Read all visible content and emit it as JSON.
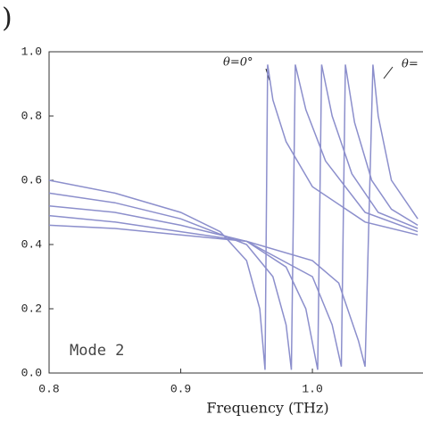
{
  "chart_data": {
    "type": "line",
    "title": ")",
    "x_label": "Frequency (THz)",
    "annotations": [
      "θ=0°",
      "θ="
    ],
    "mode_label": "Mode 2",
    "xlim": [
      0.8,
      1.084
    ],
    "xticks": [
      0.8,
      0.9,
      {
        "value": 1,
        "label": "1.0"
      }
    ],
    "ylim": [
      0,
      1
    ],
    "yticks": [
      {
        "value": 0,
        "label": "0.0"
      },
      0.2,
      0.4,
      0.6,
      0.8,
      {
        "value": 1,
        "label": "1.0"
      }
    ],
    "series": [
      {
        "color": "#8c8fcc",
        "x": [
          0.8,
          0.85,
          0.9,
          0.93,
          0.95,
          0.96,
          0.964,
          0.966,
          0.97,
          0.98,
          1.0,
          1.04,
          1.08
        ],
        "values": [
          0.6,
          0.56,
          0.5,
          0.44,
          0.35,
          0.2,
          0.01,
          0.96,
          0.85,
          0.72,
          0.58,
          0.47,
          0.43
        ]
      },
      {
        "color": "#8c8fcc",
        "x": [
          0.8,
          0.85,
          0.9,
          0.95,
          0.97,
          0.98,
          0.984,
          0.987,
          0.995,
          1.01,
          1.04,
          1.08
        ],
        "values": [
          0.56,
          0.53,
          0.48,
          0.4,
          0.3,
          0.15,
          0.01,
          0.96,
          0.82,
          0.66,
          0.5,
          0.44
        ]
      },
      {
        "color": "#8c8fcc",
        "x": [
          0.8,
          0.85,
          0.9,
          0.95,
          0.98,
          0.995,
          1.004,
          1.007,
          1.015,
          1.03,
          1.05,
          1.08
        ],
        "values": [
          0.52,
          0.5,
          0.46,
          0.41,
          0.33,
          0.2,
          0.01,
          0.96,
          0.8,
          0.62,
          0.5,
          0.45
        ]
      },
      {
        "color": "#8c8fcc",
        "x": [
          0.8,
          0.85,
          0.9,
          0.95,
          1.0,
          1.015,
          1.022,
          1.025,
          1.032,
          1.045,
          1.06,
          1.08
        ],
        "values": [
          0.49,
          0.47,
          0.44,
          0.41,
          0.3,
          0.15,
          0.02,
          0.96,
          0.78,
          0.6,
          0.51,
          0.46
        ]
      },
      {
        "color": "#8c8fcc",
        "x": [
          0.8,
          0.85,
          0.9,
          0.95,
          1.0,
          1.02,
          1.035,
          1.04,
          1.046,
          1.05,
          1.06,
          1.08
        ],
        "values": [
          0.46,
          0.45,
          0.43,
          0.41,
          0.35,
          0.28,
          0.1,
          0.02,
          0.96,
          0.8,
          0.6,
          0.48
        ]
      }
    ]
  }
}
